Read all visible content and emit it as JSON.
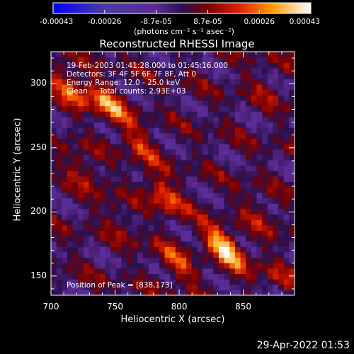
{
  "chart_data": {
    "type": "heatmap",
    "title": "Reconstructed RHESSI Image",
    "xlabel": "Heliocentric X (arcsec)",
    "ylabel": "Heliocentric Y (arcsec)",
    "xlim": [
      700,
      890
    ],
    "ylim": [
      135,
      325
    ],
    "xticks": [
      700,
      750,
      800,
      850
    ],
    "yticks": [
      150,
      200,
      250,
      300
    ],
    "colorbar": {
      "ticks": [
        "-0.00043",
        "-0.00026",
        "-8.7e-05",
        "8.7e-05",
        "0.00026",
        "0.00043"
      ],
      "unit": "(photons cm⁻² s⁻¹ asec⁻²)",
      "range": [
        -0.00043,
        0.00043
      ]
    },
    "annotations": {
      "time_range": "19-Feb-2003 01:41:28.000 to 01:45:16.000",
      "detectors": "Detectors: 3F 4F 5F 6F 7F 8F, Att 0",
      "energy": "Energy Range: 12.0 - 25.0 keV",
      "method": "Clean     Total counts: 2.93E+03",
      "peak": "Position of Peak = [838,173]"
    },
    "sources": [
      {
        "x": 838,
        "y": 173,
        "value": 0.00043
      },
      {
        "x": 745,
        "y": 288,
        "value": 0.0003
      },
      {
        "x": 715,
        "y": 300,
        "value": 0.00026
      },
      {
        "x": 790,
        "y": 215,
        "value": 0.00025
      },
      {
        "x": 770,
        "y": 255,
        "value": 0.00018
      },
      {
        "x": 725,
        "y": 235,
        "value": 0.00015
      },
      {
        "x": 800,
        "y": 160,
        "value": 0.0002
      },
      {
        "x": 865,
        "y": 200,
        "value": 0.00012
      },
      {
        "x": 755,
        "y": 195,
        "value": 0.0001
      },
      {
        "x": 870,
        "y": 300,
        "value": 8e-05
      },
      {
        "x": 880,
        "y": 150,
        "value": 0.0001
      }
    ],
    "grid": false
  },
  "timestamp": "29-Apr-2022 01:53"
}
